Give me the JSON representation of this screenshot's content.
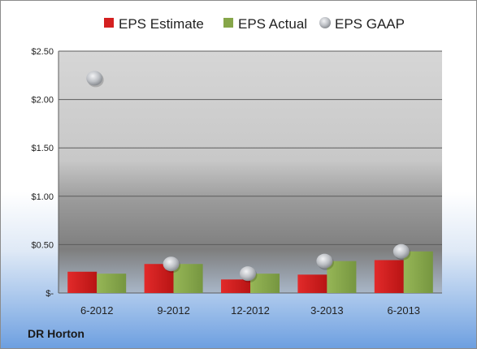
{
  "company": "DR Horton",
  "colors": {
    "estimate": "#d42020",
    "actual": "#86a649",
    "gaap": "#b8bcc2"
  },
  "chart_data": {
    "type": "bar",
    "categories": [
      "6-2012",
      "9-2012",
      "12-2012",
      "3-2013",
      "6-2013"
    ],
    "series": [
      {
        "name": "EPS Estimate",
        "values": [
          0.22,
          0.3,
          0.14,
          0.19,
          0.34
        ]
      },
      {
        "name": "EPS Actual",
        "values": [
          0.2,
          0.3,
          0.2,
          0.33,
          0.43
        ]
      },
      {
        "name": "EPS GAAP",
        "type": "scatter",
        "values": [
          2.22,
          0.3,
          0.2,
          0.33,
          0.43
        ]
      }
    ],
    "ylim": [
      0,
      2.5
    ],
    "yticks": [
      0,
      0.5,
      1.0,
      1.5,
      2.0,
      2.5
    ],
    "ytick_labels": [
      "$-",
      "$0.50",
      "$1.00",
      "$1.50",
      "$2.00",
      "$2.50"
    ],
    "grid": true,
    "legend_position": "top"
  }
}
